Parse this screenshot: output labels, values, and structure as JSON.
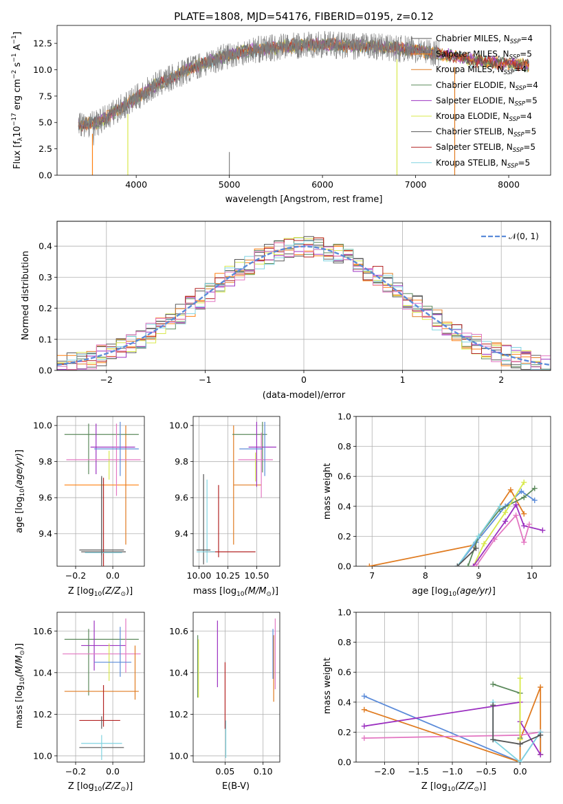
{
  "colors": {
    "Chabrier MILES": "#5a5a5a",
    "Salpeter MILES": "#ff7f0e",
    "Kroupa MILES": "#e07b20",
    "Chabrier ELODIE": "#5c8a5c",
    "Salpeter ELODIE": "#9b30c0",
    "Kroupa ELODIE": "#d8e84a",
    "Chabrier STELIB": "#555555",
    "Salpeter STELIB": "#b22222",
    "Kroupa STELIB": "#7fd3e0",
    "pink": "#e377c2",
    "blue": "#5b8bd9",
    "gray_spectrum": "#808080",
    "normal_curve": "#5b8bd9"
  },
  "chart_data": [
    {
      "id": "spectrum",
      "type": "line",
      "title": "PLATE=1808, MJD=54176, FIBERID=0195, z=0.12",
      "xlabel": "wavelength [Angstrom, rest frame]",
      "ylabel": "Flux [f",
      "ylabel_parts": [
        "Flux [f",
        "λ",
        "10",
        "−17",
        " erg cm",
        "−2",
        " s",
        "−1",
        " A",
        "−1",
        "]"
      ],
      "xlim": [
        3150,
        8450
      ],
      "ylim": [
        0,
        14.2
      ],
      "xticks": [
        4000,
        5000,
        6000,
        7000,
        8000
      ],
      "yticks": [
        0.0,
        2.5,
        5.0,
        7.5,
        10.0,
        12.5
      ],
      "continuum_x": [
        3400,
        3600,
        3800,
        4000,
        4200,
        4400,
        4600,
        4800,
        5000,
        5200,
        5400,
        5600,
        5800,
        6000,
        6200,
        6400,
        6600,
        6800,
        7000,
        7200,
        7400,
        7600,
        7800,
        8000,
        8200
      ],
      "continuum_y": [
        4.8,
        5.0,
        6.2,
        7.3,
        8.5,
        9.3,
        10.2,
        10.8,
        11.4,
        11.8,
        12.0,
        12.2,
        12.3,
        12.4,
        12.3,
        12.2,
        12.2,
        12.0,
        11.9,
        11.6,
        11.3,
        10.9,
        10.7,
        10.6,
        10.4
      ],
      "legend": [
        {
          "name": "Chabrier MILES",
          "label": "Chabrier MILES, N",
          "sub": "SSP",
          "tail": "=4"
        },
        {
          "name": "Salpeter MILES",
          "label": "Salpeter MILES, N",
          "sub": "SSP",
          "tail": "=5"
        },
        {
          "name": "Kroupa MILES",
          "label": "Kroupa MILES, N",
          "sub": "SSP",
          "tail": "=4"
        },
        {
          "name": "Chabrier ELODIE",
          "label": "Chabrier ELODIE, N",
          "sub": "SSP",
          "tail": "=4"
        },
        {
          "name": "Salpeter ELODIE",
          "label": "Salpeter ELODIE, N",
          "sub": "SSP",
          "tail": "=5"
        },
        {
          "name": "Kroupa ELODIE",
          "label": "Kroupa ELODIE, N",
          "sub": "SSP",
          "tail": "=4"
        },
        {
          "name": "Chabrier STELIB",
          "label": "Chabrier STELIB, N",
          "sub": "SSP",
          "tail": "=5"
        },
        {
          "name": "Salpeter STELIB",
          "label": "Salpeter STELIB, N",
          "sub": "SSP",
          "tail": "=5"
        },
        {
          "name": "Kroupa STELIB",
          "label": "Kroupa STELIB, N",
          "sub": "SSP",
          "tail": "=5"
        }
      ]
    },
    {
      "id": "residuals",
      "type": "line",
      "xlabel": "(data-model)/error",
      "ylabel": "Normed distribution",
      "xlim": [
        -2.5,
        2.5
      ],
      "ylim": [
        0,
        0.48
      ],
      "xticks": [
        -2,
        -1,
        0,
        1,
        2
      ],
      "xtick_labels": [
        "−2",
        "−1",
        "0",
        "1",
        "2"
      ],
      "yticks": [
        0.0,
        0.1,
        0.2,
        0.3,
        0.4
      ],
      "legend": "𝒩(0, 1)",
      "bin_width": 0.1
    },
    {
      "id": "age-vs-Z",
      "type": "scatter",
      "xlabel": "Z [log",
      "xlabel_tail": "(Z/Z",
      "ylabel": "age  [log",
      "xlim": [
        -0.3,
        0.17
      ],
      "ylim": [
        9.22,
        10.05
      ],
      "xticks": [
        -0.2,
        0.0
      ],
      "xtick_labels": [
        "−0.2",
        "0.0"
      ],
      "yticks": [
        9.4,
        9.6,
        9.8,
        10.0
      ],
      "points": [
        {
          "c": "Chabrier MILES",
          "x": -0.06,
          "xe": 0.12,
          "y": 9.31,
          "ye": 0.4
        },
        {
          "c": "Salpeter MILES",
          "x": -0.06,
          "xe": 0.2,
          "y": 9.67,
          "ye": 0.0
        },
        {
          "c": "Kroupa MILES",
          "x": 0.07,
          "xe": 0.0,
          "y": 9.67,
          "ye": 0.33
        },
        {
          "c": "Chabrier ELODIE",
          "x": -0.06,
          "xe": 0.2,
          "y": 9.95,
          "ye": 0.0
        },
        {
          "c": "Chabrier ELODIE",
          "x": -0.13,
          "xe": 0.0,
          "y": 9.87,
          "ye": 0.14
        },
        {
          "c": "Salpeter ELODIE",
          "x": 0.0,
          "xe": 0.12,
          "y": 9.88,
          "ye": 0.0
        },
        {
          "c": "Salpeter ELODIE",
          "x": -0.09,
          "xe": 0.0,
          "y": 9.87,
          "ye": 0.14
        },
        {
          "c": "Kroupa ELODIE",
          "x": -0.02,
          "xe": 0.0,
          "y": 9.78,
          "ye": 0.08
        },
        {
          "c": "Chabrier STELIB",
          "x": -0.05,
          "xe": 0.12,
          "y": 9.3,
          "ye": 0.0
        },
        {
          "c": "Salpeter STELIB",
          "x": -0.05,
          "xe": 0.0,
          "y": 9.3,
          "ye": 0.41
        },
        {
          "c": "Kroupa STELIB",
          "x": -0.05,
          "xe": 0.1,
          "y": 9.295,
          "ye": 0.0
        },
        {
          "c": "pink",
          "x": -0.05,
          "xe": 0.2,
          "y": 9.81,
          "ye": 0.0
        },
        {
          "c": "pink",
          "x": 0.02,
          "xe": 0.0,
          "y": 9.81,
          "ye": 0.2
        },
        {
          "c": "blue",
          "x": 0.02,
          "xe": 0.12,
          "y": 9.87,
          "ye": 0.0
        },
        {
          "c": "blue",
          "x": 0.04,
          "xe": 0.0,
          "y": 9.87,
          "ye": 0.15
        },
        {
          "c": "Chabrier MILES",
          "x": -0.06,
          "xe": 0.0,
          "y": 9.5,
          "ye": 0.22
        }
      ]
    },
    {
      "id": "age-vs-mass",
      "type": "scatter",
      "xlabel": "mass [log",
      "xlim": [
        9.95,
        10.7
      ],
      "ylim": [
        9.22,
        10.05
      ],
      "xticks": [
        10.0,
        10.25,
        10.5
      ],
      "xtick_labels": [
        "10.00",
        "10.25",
        "10.50"
      ],
      "yticks": [
        9.4,
        9.6,
        9.8,
        10.0
      ],
      "points": [
        {
          "c": "Chabrier STELIB",
          "x": 10.04,
          "xe": 0.0,
          "y": 9.48,
          "ye": 0.25
        },
        {
          "c": "Kroupa STELIB",
          "x": 10.07,
          "xe": 0.0,
          "y": 9.47,
          "ye": 0.23
        },
        {
          "c": "Salpeter STELIB",
          "x": 10.17,
          "xe": 0.0,
          "y": 9.47,
          "ye": 0.2
        },
        {
          "c": "Salpeter STELIB",
          "x": 10.27,
          "xe": 0.22,
          "y": 9.3,
          "ye": 0.0
        },
        {
          "c": "Chabrier MILES",
          "x": 10.04,
          "xe": 0.06,
          "y": 9.31,
          "ye": 0.0
        },
        {
          "c": "Kroupa STELIB",
          "x": 10.06,
          "xe": 0.08,
          "y": 9.3,
          "ye": 0.0
        },
        {
          "c": "Kroupa MILES",
          "x": 10.42,
          "xe": 0.12,
          "y": 9.67,
          "ye": 0.0
        },
        {
          "c": "Kroupa MILES",
          "x": 10.3,
          "xe": 0.0,
          "y": 9.67,
          "ye": 0.33
        },
        {
          "c": "Chabrier ELODIE",
          "x": 10.44,
          "xe": 0.15,
          "y": 9.95,
          "ye": 0.0
        },
        {
          "c": "Chabrier ELODIE",
          "x": 10.55,
          "xe": 0.0,
          "y": 9.88,
          "ye": 0.14
        },
        {
          "c": "Salpeter ELODIE",
          "x": 10.55,
          "xe": 0.12,
          "y": 9.88,
          "ye": 0.0
        },
        {
          "c": "Salpeter ELODIE",
          "x": 10.5,
          "xe": 0.0,
          "y": 9.84,
          "ye": 0.18
        },
        {
          "c": "Kroupa ELODIE",
          "x": 10.49,
          "xe": 0.0,
          "y": 9.77,
          "ye": 0.08
        },
        {
          "c": "pink",
          "x": 10.49,
          "xe": 0.15,
          "y": 9.81,
          "ye": 0.0
        },
        {
          "c": "pink",
          "x": 10.54,
          "xe": 0.0,
          "y": 9.78,
          "ye": 0.18
        },
        {
          "c": "blue",
          "x": 10.45,
          "xe": 0.1,
          "y": 9.87,
          "ye": 0.0
        },
        {
          "c": "blue",
          "x": 10.57,
          "xe": 0.0,
          "y": 9.87,
          "ye": 0.15
        }
      ]
    },
    {
      "id": "weight-vs-age",
      "type": "line",
      "xlabel": "age  [log",
      "ylabel": "mass weight",
      "xlim": [
        6.7,
        10.35
      ],
      "ylim": [
        0,
        1
      ],
      "xticks": [
        7,
        8,
        9,
        10
      ],
      "xtick_labels": [
        "7",
        "8",
        "9",
        "10"
      ],
      "yticks": [
        0.0,
        0.2,
        0.4,
        0.6,
        0.8,
        1.0
      ],
      "ytick_labels": [
        "0.0",
        "0.2",
        "0.4",
        "0.6",
        "0.8",
        "1.0"
      ],
      "series": [
        {
          "c": "Kroupa MILES",
          "x": [
            6.95,
            8.9,
            9.6,
            9.85
          ],
          "y": [
            0.0,
            0.14,
            0.51,
            0.35
          ]
        },
        {
          "c": "blue",
          "x": [
            8.6,
            8.95,
            9.5,
            9.8,
            10.05
          ],
          "y": [
            0.0,
            0.16,
            0.4,
            0.5,
            0.44
          ]
        },
        {
          "c": "Chabrier ELODIE",
          "x": [
            8.8,
            9.0,
            9.4,
            9.85,
            10.05
          ],
          "y": [
            0.0,
            0.2,
            0.38,
            0.46,
            0.52
          ]
        },
        {
          "c": "Kroupa ELODIE",
          "x": [
            8.9,
            9.1,
            9.5,
            9.85
          ],
          "y": [
            0.0,
            0.15,
            0.36,
            0.56
          ]
        },
        {
          "c": "Salpeter ELODIE",
          "x": [
            8.9,
            9.5,
            9.7,
            9.85,
            10.2
          ],
          "y": [
            0.0,
            0.3,
            0.41,
            0.27,
            0.24
          ]
        },
        {
          "c": "pink",
          "x": [
            8.95,
            9.3,
            9.7,
            9.85,
            9.95
          ],
          "y": [
            0.0,
            0.18,
            0.34,
            0.16,
            0.28
          ]
        },
        {
          "c": "Kroupa STELIB",
          "x": [
            8.6,
            9.0,
            9.4
          ],
          "y": [
            0.0,
            0.2,
            0.4
          ]
        },
        {
          "c": "Chabrier STELIB",
          "x": [
            8.6,
            8.95
          ],
          "y": [
            0.0,
            0.12
          ]
        }
      ]
    },
    {
      "id": "mass-vs-Z",
      "type": "scatter",
      "xlabel": "Z [log",
      "ylabel": "mass [log",
      "xlim": [
        -0.3,
        0.17
      ],
      "ylim": [
        9.97,
        10.69
      ],
      "xticks": [
        -0.2,
        0.0
      ],
      "xtick_labels": [
        "−0.2",
        "0.0"
      ],
      "yticks": [
        10.0,
        10.2,
        10.4,
        10.6
      ],
      "points": [
        {
          "c": "Chabrier ELODIE",
          "x": -0.06,
          "xe": 0.2,
          "y": 10.56,
          "ye": 0.0
        },
        {
          "c": "Chabrier ELODIE",
          "x": -0.13,
          "xe": 0.0,
          "y": 10.45,
          "ye": 0.16
        },
        {
          "c": "Salpeter ELODIE",
          "x": -0.05,
          "xe": 0.12,
          "y": 10.53,
          "ye": 0.0
        },
        {
          "c": "Salpeter ELODIE",
          "x": -0.1,
          "xe": 0.0,
          "y": 10.53,
          "ye": 0.12
        },
        {
          "c": "pink",
          "x": -0.06,
          "xe": 0.21,
          "y": 10.49,
          "ye": 0.0
        },
        {
          "c": "pink",
          "x": 0.07,
          "xe": 0.0,
          "y": 10.53,
          "ye": 0.13
        },
        {
          "c": "Kroupa ELODIE",
          "x": -0.02,
          "xe": 0.0,
          "y": 10.45,
          "ye": 0.09
        },
        {
          "c": "blue",
          "x": 0.0,
          "xe": 0.1,
          "y": 10.45,
          "ye": 0.0
        },
        {
          "c": "blue",
          "x": 0.04,
          "xe": 0.0,
          "y": 10.5,
          "ye": 0.12
        },
        {
          "c": "Kroupa MILES",
          "x": -0.06,
          "xe": 0.2,
          "y": 10.31,
          "ye": 0.0
        },
        {
          "c": "Kroupa MILES",
          "x": 0.12,
          "xe": 0.0,
          "y": 10.4,
          "ye": 0.13
        },
        {
          "c": "Salpeter STELIB",
          "x": -0.07,
          "xe": 0.11,
          "y": 10.17,
          "ye": 0.0
        },
        {
          "c": "Salpeter STELIB",
          "x": -0.05,
          "xe": 0.0,
          "y": 10.24,
          "ye": 0.1
        },
        {
          "c": "Chabrier MILES",
          "x": -0.06,
          "xe": 0.0,
          "y": 10.16,
          "ye": 0.03
        },
        {
          "c": "Kroupa STELIB",
          "x": -0.06,
          "xe": 0.11,
          "y": 10.06,
          "ye": 0.0
        },
        {
          "c": "Chabrier STELIB",
          "x": -0.06,
          "xe": 0.12,
          "y": 10.04,
          "ye": 0.0
        },
        {
          "c": "Kroupa STELIB",
          "x": -0.06,
          "xe": 0.0,
          "y": 10.04,
          "ye": 0.06
        }
      ]
    },
    {
      "id": "mass-vs-ebv",
      "type": "scatter",
      "xlabel": "E(B-V)",
      "xlim": [
        0.008,
        0.122
      ],
      "ylim": [
        9.97,
        10.69
      ],
      "xticks": [
        0.05,
        0.1
      ],
      "xtick_labels": [
        "0.05",
        "0.10"
      ],
      "yticks": [
        10.0,
        10.2,
        10.4,
        10.6
      ],
      "points": [
        {
          "c": "Chabrier ELODIE",
          "x": 0.014,
          "ye": 0.15,
          "y": 10.43
        },
        {
          "c": "Kroupa ELODIE",
          "x": 0.015,
          "ye": 0.14,
          "y": 10.42
        },
        {
          "c": "Salpeter ELODIE",
          "x": 0.04,
          "ye": 0.16,
          "y": 10.49
        },
        {
          "c": "Salpeter STELIB",
          "x": 0.05,
          "ye": 0.16,
          "y": 10.29
        },
        {
          "c": "Kroupa STELIB",
          "x": 0.051,
          "ye": 0.09,
          "y": 10.08
        },
        {
          "c": "Kroupa MILES",
          "x": 0.114,
          "ye": 0.16,
          "y": 10.42
        },
        {
          "c": "blue",
          "x": 0.113,
          "ye": 0.12,
          "y": 10.49
        },
        {
          "c": "pink",
          "x": 0.116,
          "ye": 0.17,
          "y": 10.49
        }
      ]
    },
    {
      "id": "weight-vs-Z",
      "type": "line",
      "xlabel": "Z [log",
      "ylabel": "mass weight",
      "xlim": [
        -2.42,
        0.45
      ],
      "ylim": [
        0,
        1
      ],
      "xticks": [
        -2.0,
        -1.5,
        -1.0,
        -0.5,
        0.0
      ],
      "xtick_labels": [
        "−2.0",
        "−1.5",
        "−1.0",
        "−0.5",
        "0.0"
      ],
      "yticks": [
        0.0,
        0.2,
        0.4,
        0.6,
        0.8,
        1.0
      ],
      "ytick_labels": [
        "0.0",
        "0.2",
        "0.4",
        "0.6",
        "0.8",
        "1.0"
      ],
      "series": [
        {
          "c": "blue",
          "x": [
            -2.3,
            0.0,
            0.3,
            0.3
          ],
          "y": [
            0.44,
            0.0,
            0.2,
            0.05
          ]
        },
        {
          "c": "Kroupa MILES",
          "x": [
            -2.3,
            0.0,
            0.0,
            0.3,
            0.3
          ],
          "y": [
            0.35,
            0.0,
            0.15,
            0.5,
            0.05
          ]
        },
        {
          "c": "Salpeter ELODIE",
          "x": [
            -2.3,
            0.0,
            0.0,
            0.3
          ],
          "y": [
            0.24,
            0.4,
            0.27,
            0.05
          ]
        },
        {
          "c": "pink",
          "x": [
            -2.3,
            0.0,
            0.3
          ],
          "y": [
            0.16,
            0.18,
            0.2
          ]
        },
        {
          "c": "Chabrier ELODIE",
          "x": [
            -0.4,
            0.0,
            0.0
          ],
          "y": [
            0.52,
            0.46,
            0.16
          ]
        },
        {
          "c": "Kroupa ELODIE",
          "x": [
            0.0,
            0.0
          ],
          "y": [
            0.56,
            0.15
          ]
        },
        {
          "c": "Kroupa STELIB",
          "x": [
            -0.4,
            -0.4,
            0.0,
            0.3
          ],
          "y": [
            0.4,
            0.15,
            0.0,
            0.2
          ]
        },
        {
          "c": "Chabrier STELIB",
          "x": [
            -0.4,
            -0.4,
            0.0,
            0.3
          ],
          "y": [
            0.38,
            0.15,
            0.12,
            0.18
          ]
        }
      ]
    }
  ]
}
